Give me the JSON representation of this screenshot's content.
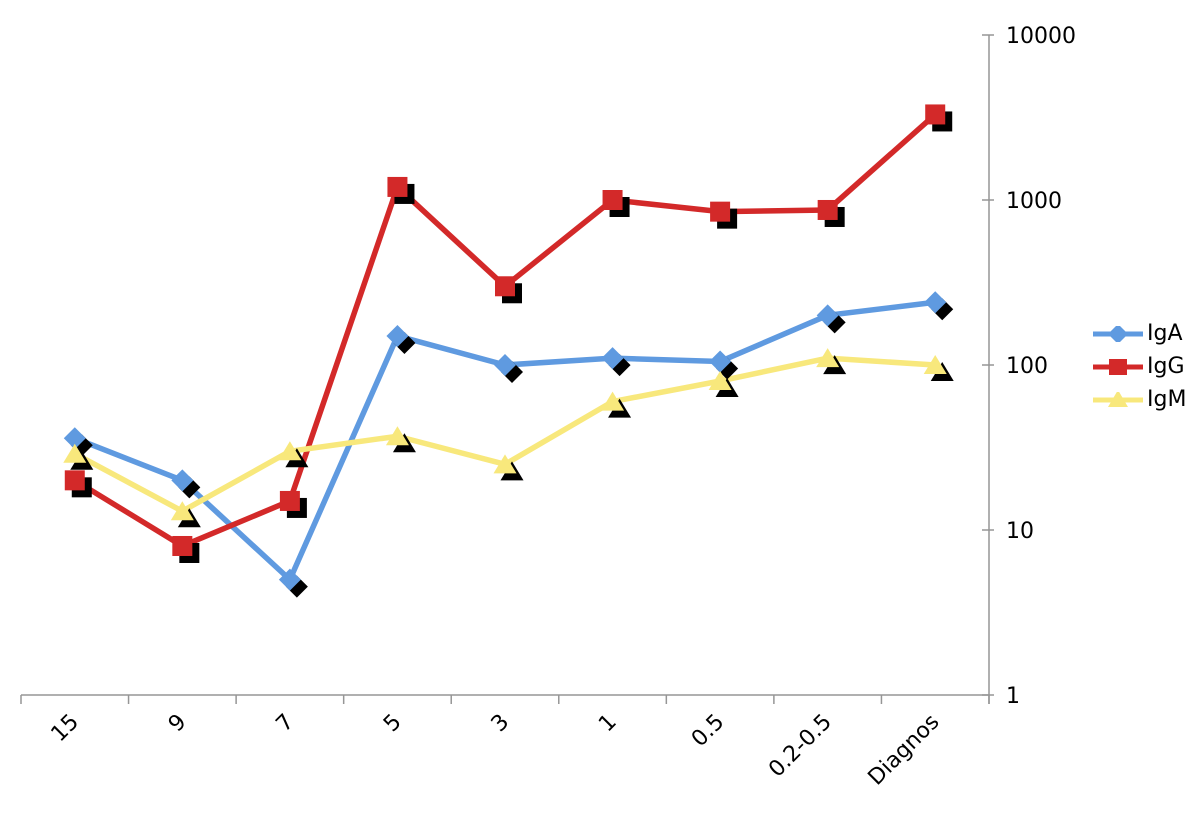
{
  "chart_data": {
    "type": "line",
    "title": "",
    "xlabel": "",
    "ylabel": "",
    "categories": [
      "15",
      "9",
      "7",
      "5",
      "3",
      "1",
      "0.5",
      "0.2-0.5",
      "Diagnos"
    ],
    "y_axis": {
      "scale": "log",
      "min": 1,
      "max": 10000,
      "ticks": [
        1,
        10,
        100,
        1000,
        10000
      ],
      "tick_labels": [
        "1",
        "10",
        "100",
        "1000",
        "10000"
      ]
    },
    "series": [
      {
        "name": "IgA",
        "color": "#5f9ae0",
        "marker": "diamond",
        "values": [
          36,
          20,
          5,
          150,
          100,
          110,
          105,
          200,
          240
        ]
      },
      {
        "name": "IgG",
        "color": "#d32929",
        "marker": "square",
        "values": [
          20,
          8,
          15,
          1200,
          300,
          1000,
          850,
          870,
          3300
        ]
      },
      {
        "name": "IgM",
        "color": "#f8e87c",
        "marker": "triangle",
        "values": [
          29,
          13,
          30,
          37,
          25,
          60,
          80,
          110,
          100
        ]
      }
    ],
    "legend": {
      "position": "right",
      "entries": [
        "IgA",
        "IgG",
        "IgM"
      ]
    },
    "grid": false,
    "axis_color": "#969696",
    "text_color": "#000000",
    "marker_shadow_color": "#000000",
    "background_color": "#ffffff"
  }
}
